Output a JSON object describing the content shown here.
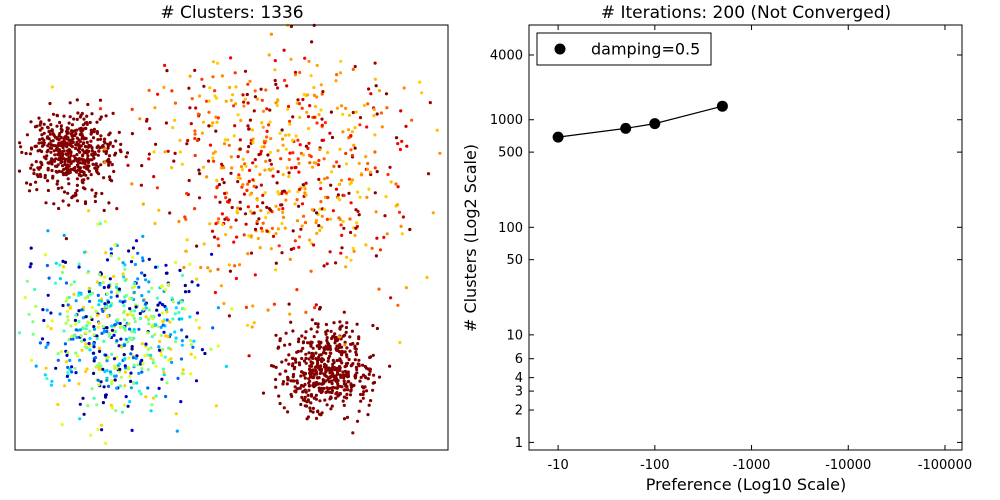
{
  "chart_data": [
    {
      "type": "scatter",
      "title": "# Clusters: 1336",
      "xlabel": "",
      "ylabel": "",
      "xticks": [],
      "yticks": [],
      "colormap": "jet",
      "blobs": [
        {
          "center": [
            0.13,
            0.7
          ],
          "spread": 0.05,
          "count": 520,
          "colors": [
            "#800000",
            "#800000",
            "#800000",
            "#7a0000",
            "#8b0000"
          ]
        },
        {
          "center": [
            0.72,
            0.19
          ],
          "spread": 0.05,
          "count": 520,
          "colors": [
            "#800000",
            "#800000",
            "#800000",
            "#7a0000",
            "#8b0000"
          ]
        },
        {
          "center": [
            0.62,
            0.66
          ],
          "spread": 0.15,
          "count": 700,
          "colors": [
            "#800000",
            "#a00000",
            "#d00000",
            "#ff0000",
            "#ff3000",
            "#ff6000",
            "#ff8c00",
            "#ffa500",
            "#ffbf00",
            "#ffd000"
          ]
        },
        {
          "center": [
            0.24,
            0.28
          ],
          "spread": 0.095,
          "count": 650,
          "colors": [
            "#000080",
            "#0000cd",
            "#0060ff",
            "#00a0ff",
            "#00d8ff",
            "#40ffc0",
            "#80ff80",
            "#b0ff50",
            "#e0ff20",
            "#ffd000"
          ]
        }
      ]
    },
    {
      "type": "line",
      "title": "# Iterations: 200 (Not Converged)",
      "xlabel": "Preference (Log10 Scale)",
      "ylabel": "# Clusters (Log2 Scale)",
      "xscale": "log10",
      "yscale": "log2",
      "xlim": [
        -5,
        -150000
      ],
      "ylim": [
        0.85,
        7600
      ],
      "xticks": [
        {
          "value": -10,
          "label": "-10"
        },
        {
          "value": -100,
          "label": "-100"
        },
        {
          "value": -1000,
          "label": "-1000"
        },
        {
          "value": -10000,
          "label": "-10000"
        },
        {
          "value": -100000,
          "label": "-100000"
        }
      ],
      "yticks": [
        1,
        2,
        3,
        4,
        6,
        10,
        50,
        100,
        500,
        1000,
        4000
      ],
      "legend": {
        "position": "top-left",
        "entries": [
          "damping=0.5"
        ]
      },
      "series": [
        {
          "name": "damping=0.5",
          "color": "#000000",
          "x": [
            -10,
            -50,
            -100,
            -500
          ],
          "y": [
            690,
            830,
            920,
            1336
          ]
        }
      ]
    }
  ]
}
